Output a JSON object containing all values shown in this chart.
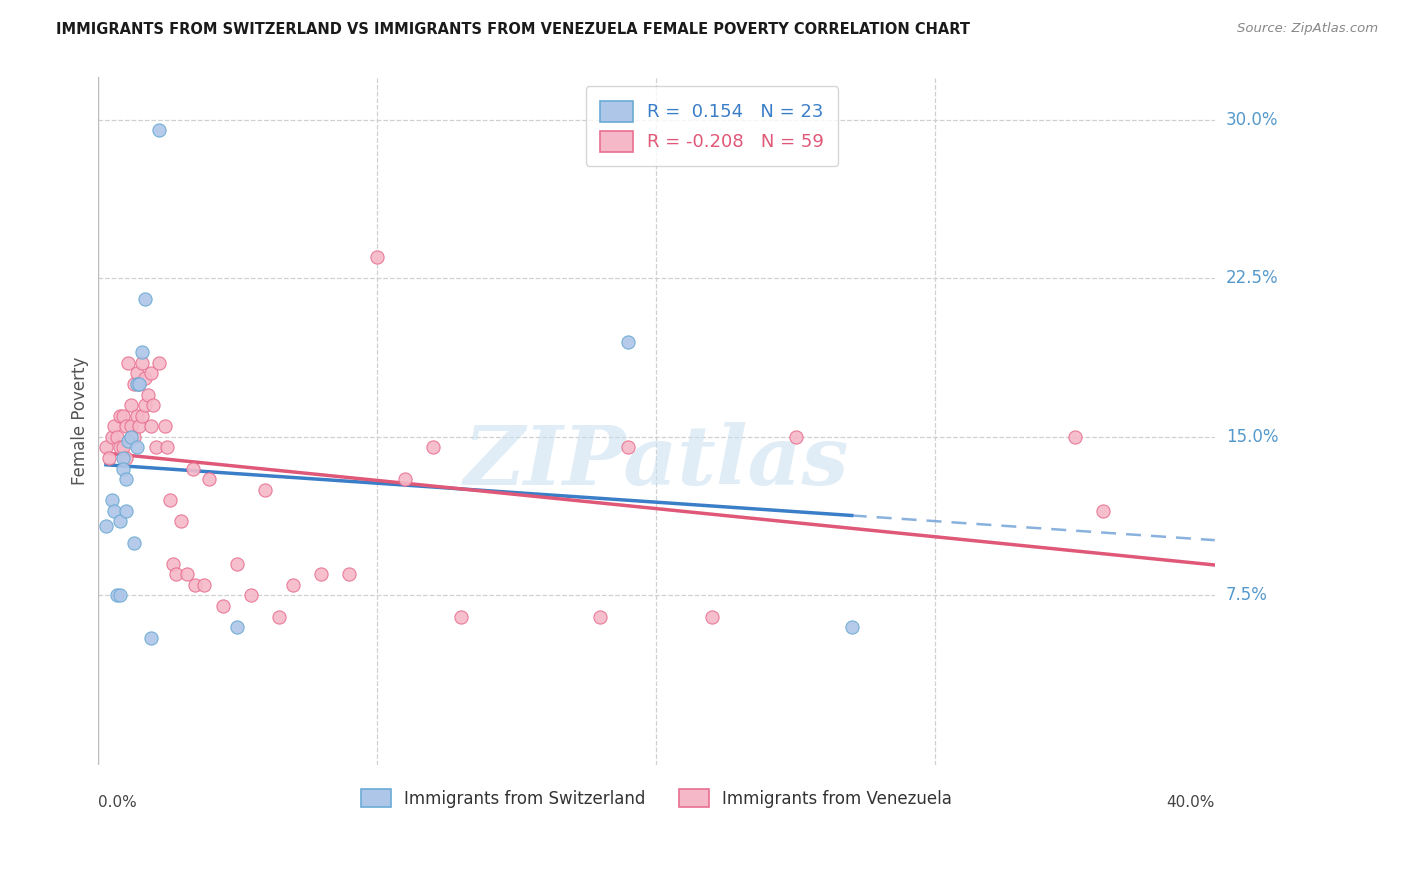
{
  "title": "IMMIGRANTS FROM SWITZERLAND VS IMMIGRANTS FROM VENEZUELA FEMALE POVERTY CORRELATION CHART",
  "source": "Source: ZipAtlas.com",
  "ylabel": "Female Poverty",
  "ytick_vals": [
    0.075,
    0.15,
    0.225,
    0.3
  ],
  "ytick_labels": [
    "7.5%",
    "15.0%",
    "22.5%",
    "30.0%"
  ],
  "xtick_vals": [
    0.0,
    0.1,
    0.2,
    0.3,
    0.4
  ],
  "xlim": [
    0.0,
    0.4
  ],
  "ylim": [
    -0.005,
    0.32
  ],
  "r_swiss": 0.154,
  "n_swiss": 23,
  "r_venezuela": -0.208,
  "n_venezuela": 59,
  "swiss_color": "#aec6e8",
  "venezuela_color": "#f5b8c8",
  "swiss_edge_color": "#6aaad4",
  "venezuela_edge_color": "#e87090",
  "swiss_line_color": "#3a7ec8",
  "venezuela_line_color": "#e05878",
  "legend_label_swiss": "Immigrants from Switzerland",
  "legend_label_venezuela": "Immigrants from Venezuela",
  "swiss_x": [
    0.003,
    0.005,
    0.006,
    0.007,
    0.008,
    0.008,
    0.009,
    0.009,
    0.01,
    0.01,
    0.011,
    0.012,
    0.013,
    0.014,
    0.014,
    0.015,
    0.016,
    0.017,
    0.019,
    0.022,
    0.05,
    0.19,
    0.27
  ],
  "swiss_y": [
    0.108,
    0.12,
    0.115,
    0.075,
    0.075,
    0.11,
    0.14,
    0.135,
    0.13,
    0.115,
    0.148,
    0.15,
    0.1,
    0.145,
    0.175,
    0.175,
    0.19,
    0.215,
    0.055,
    0.295,
    0.06,
    0.195,
    0.06
  ],
  "venezuela_x": [
    0.003,
    0.004,
    0.005,
    0.006,
    0.007,
    0.008,
    0.008,
    0.009,
    0.009,
    0.01,
    0.01,
    0.011,
    0.012,
    0.012,
    0.013,
    0.013,
    0.014,
    0.014,
    0.015,
    0.015,
    0.016,
    0.016,
    0.017,
    0.017,
    0.018,
    0.019,
    0.019,
    0.02,
    0.021,
    0.022,
    0.024,
    0.025,
    0.026,
    0.027,
    0.028,
    0.03,
    0.032,
    0.034,
    0.035,
    0.038,
    0.04,
    0.045,
    0.05,
    0.055,
    0.06,
    0.065,
    0.07,
    0.08,
    0.09,
    0.1,
    0.11,
    0.12,
    0.13,
    0.18,
    0.19,
    0.22,
    0.25,
    0.35,
    0.36
  ],
  "venezuela_y": [
    0.145,
    0.14,
    0.15,
    0.155,
    0.15,
    0.16,
    0.145,
    0.16,
    0.145,
    0.155,
    0.14,
    0.185,
    0.165,
    0.155,
    0.175,
    0.15,
    0.18,
    0.16,
    0.175,
    0.155,
    0.185,
    0.16,
    0.178,
    0.165,
    0.17,
    0.18,
    0.155,
    0.165,
    0.145,
    0.185,
    0.155,
    0.145,
    0.12,
    0.09,
    0.085,
    0.11,
    0.085,
    0.135,
    0.08,
    0.08,
    0.13,
    0.07,
    0.09,
    0.075,
    0.125,
    0.065,
    0.08,
    0.085,
    0.085,
    0.235,
    0.13,
    0.145,
    0.065,
    0.065,
    0.145,
    0.065,
    0.15,
    0.15,
    0.115
  ],
  "watermark_text": "ZIPatlas",
  "background_color": "#ffffff",
  "grid_color": "#d0d0d0",
  "axis_label_color": "#555555",
  "title_color": "#1a1a1a",
  "source_color": "#888888",
  "ytick_right_color": "#5599cc"
}
